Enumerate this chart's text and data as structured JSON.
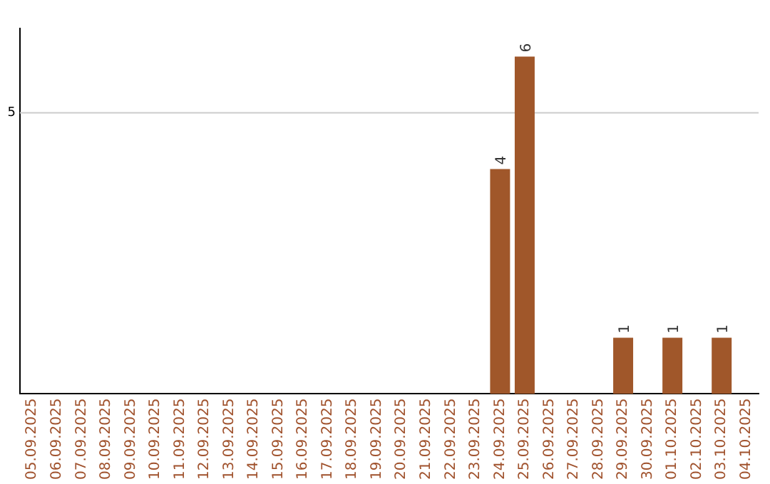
{
  "chart_data": {
    "type": "bar",
    "categories": [
      "05.09.2025",
      "06.09.2025",
      "07.09.2025",
      "08.09.2025",
      "09.09.2025",
      "10.09.2025",
      "11.09.2025",
      "12.09.2025",
      "13.09.2025",
      "14.09.2025",
      "15.09.2025",
      "16.09.2025",
      "17.09.2025",
      "18.09.2025",
      "19.09.2025",
      "20.09.2025",
      "21.09.2025",
      "22.09.2025",
      "23.09.2025",
      "24.09.2025",
      "25.09.2025",
      "26.09.2025",
      "27.09.2025",
      "28.09.2025",
      "29.09.2025",
      "30.09.2025",
      "01.10.2025",
      "02.10.2025",
      "03.10.2025",
      "04.10.2025"
    ],
    "values": [
      null,
      null,
      null,
      null,
      null,
      null,
      null,
      null,
      null,
      null,
      null,
      null,
      null,
      null,
      null,
      null,
      null,
      null,
      null,
      4,
      6,
      null,
      null,
      null,
      1,
      null,
      1,
      null,
      1,
      null
    ],
    "ylim": [
      0,
      6.5
    ],
    "color": "#a0572a",
    "ref_lines": [
      {
        "axis": "y",
        "value": 5,
        "label": "5",
        "color": "#cccccc"
      }
    ],
    "data_labels": true,
    "legend": false
  }
}
